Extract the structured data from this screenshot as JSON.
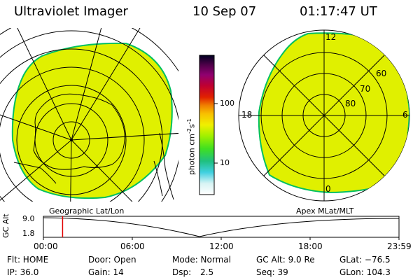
{
  "header": {
    "instrument": "Ultraviolet Imager",
    "date": "10 Sep 07",
    "time": "01:17:47 UT"
  },
  "colorbar": {
    "unit": "photon cm",
    "unit_exp1": "-2",
    "unit_mid": "s",
    "unit_exp2": "-1",
    "tick_100": "100",
    "tick_10": "10"
  },
  "left_map": {
    "label": "Geographic Lat/Lon"
  },
  "right_map": {
    "label": "Apex  MLat/MLT",
    "mlt_top": "12",
    "mlt_left": "18",
    "mlt_right": "6",
    "mlt_bottom": "0",
    "lat_60": "60",
    "lat_70": "70",
    "lat_80": "80"
  },
  "timeline": {
    "y_label": "GC Alt",
    "y_top": "9.0",
    "y_bottom": "1.8",
    "x_ticks": [
      "00:00",
      "06:00",
      "12:00",
      "18:00",
      "23:59"
    ],
    "current_time_fraction": 0.054
  },
  "info": {
    "flt": "Flt: HOME",
    "ip": "IP: 36.0",
    "door": "Door: Open",
    "gain": "Gain: 14",
    "mode": "Mode: Normal",
    "dsp_label": "Dsp:",
    "dsp_value": "2.5",
    "gcalt": "GC Alt: 9.0 Re",
    "seq": "Seq: 39",
    "glat": "GLat: −76.5",
    "glon": "GLon: 104.3"
  },
  "colors": {
    "aurora_fill": "#e0f000",
    "aurora_edge": "#00c060",
    "marker": "#e00000"
  }
}
